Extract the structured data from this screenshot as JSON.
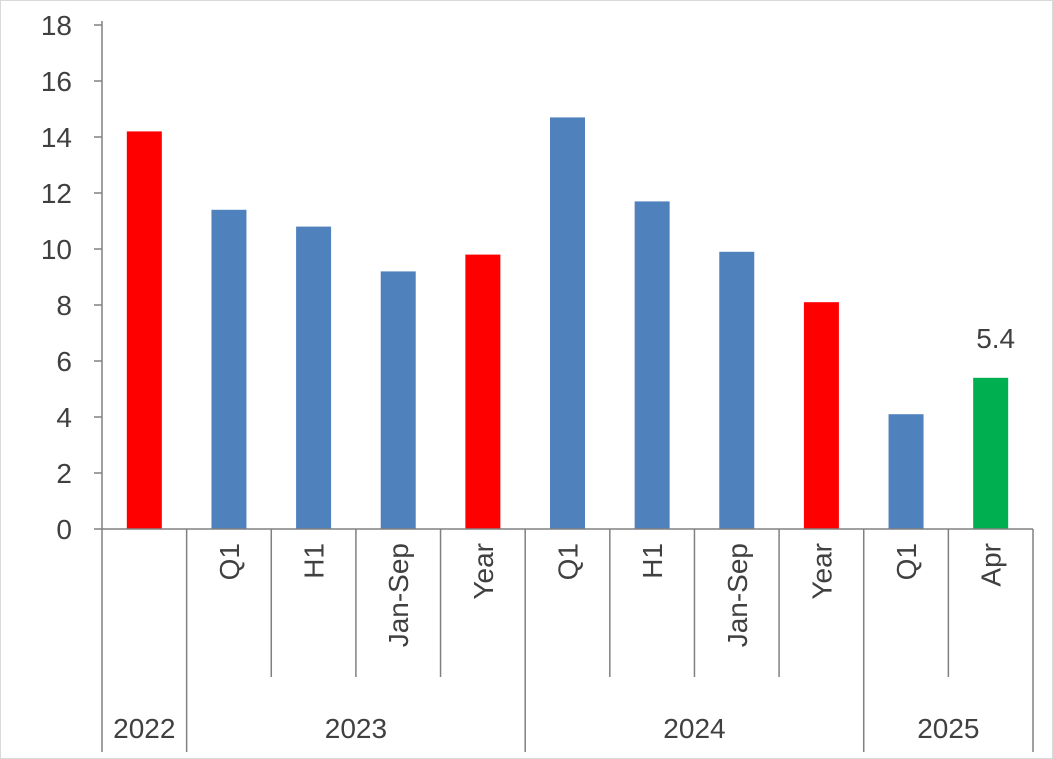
{
  "chart_data": {
    "type": "bar",
    "title": "",
    "xlabel": "",
    "ylabel": "",
    "ylim": [
      0,
      18
    ],
    "yticks": [
      "0",
      "2",
      "4",
      "6",
      "8",
      "10",
      "12",
      "14",
      "16",
      "18"
    ],
    "grid": false,
    "legend": "none",
    "categories": [
      {
        "label": "",
        "group": "2022",
        "value": 14.2,
        "color": "#ff0000"
      },
      {
        "label": "Q1",
        "group": "2023",
        "value": 11.4,
        "color": "#4f81bd"
      },
      {
        "label": "H1",
        "group": "2023",
        "value": 10.8,
        "color": "#4f81bd"
      },
      {
        "label": "Jan-Sep",
        "group": "2023",
        "value": 9.2,
        "color": "#4f81bd"
      },
      {
        "label": "Year",
        "group": "2023",
        "value": 9.8,
        "color": "#ff0000"
      },
      {
        "label": "Q1",
        "group": "2024",
        "value": 14.7,
        "color": "#4f81bd"
      },
      {
        "label": "H1",
        "group": "2024",
        "value": 11.7,
        "color": "#4f81bd"
      },
      {
        "label": "Jan-Sep",
        "group": "2024",
        "value": 9.9,
        "color": "#4f81bd"
      },
      {
        "label": "Year",
        "group": "2024",
        "value": 8.1,
        "color": "#ff0000"
      },
      {
        "label": "Q1",
        "group": "2025",
        "value": 4.1,
        "color": "#4f81bd"
      },
      {
        "label": "Apr",
        "group": "2025",
        "value": 5.4,
        "color": "#00b050",
        "data_label": "5.4"
      }
    ],
    "groups": [
      "2022",
      "2023",
      "2024",
      "2025"
    ],
    "colors": {
      "quarterly": "#4f81bd",
      "annual": "#ff0000",
      "latest": "#00b050",
      "axis": "#808080",
      "text": "#404040"
    }
  }
}
